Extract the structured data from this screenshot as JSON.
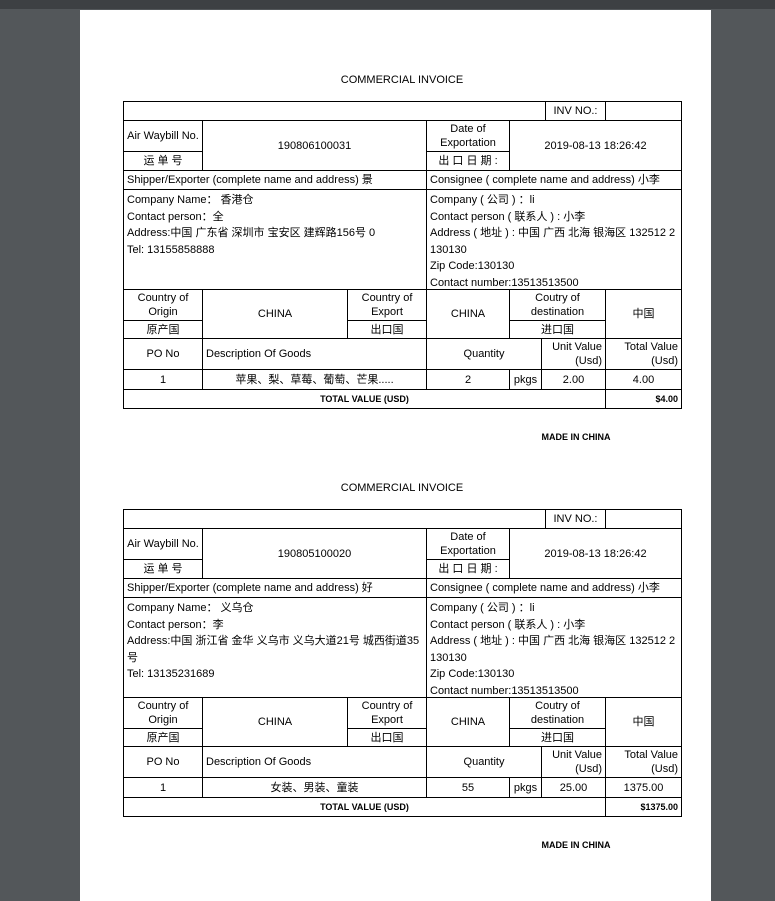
{
  "invoices": [
    {
      "title": "COMMERCIAL INVOICE",
      "inv_no_label": "INV NO.:",
      "inv_no": "",
      "waybill_label": "Air Waybill No.",
      "waybill_label_cn": "运 单 号",
      "waybill_no": "190806100031",
      "date_label": "Date of Exportation",
      "date_label_cn": "出 口 日 期 :",
      "date": "2019-08-13 18:26:42",
      "shipper_header": "Shipper/Exporter (complete name and address) 景",
      "consignee_header": "Consignee ( complete name and address) 小李",
      "shipper_lines": [
        "Company Name： 香港仓",
        "Contact person：全",
        "Address:中国 广东省 深圳市 宝安区 建辉路156号 0",
        "Tel: 13155858888"
      ],
      "consignee_lines": [
        "Company ( 公司 ) ：li",
        "Contact person ( 联系人 ) : 小李",
        "Address ( 地址 ) : 中国 广西 北海 银海区 132512 2",
        "130130",
        "Zip Code:130130",
        "Contact number:13513513500"
      ],
      "origin_label": "Country of Origin",
      "origin_label_cn": "原产国",
      "origin": "CHINA",
      "export_label": "Country of Export",
      "export_label_cn": "出口国",
      "export": "CHINA",
      "dest_label": "Coutry of destination",
      "dest_label_cn": "进口国",
      "dest": "中国",
      "col_po": "PO No",
      "col_desc": "Description Of Goods",
      "col_qty": "Quantity",
      "col_unit": "Unit Value (Usd)",
      "col_total": "Total Value (Usd)",
      "item": {
        "po": "1",
        "desc": "苹果、梨、草莓、葡萄、芒果.....",
        "qty": "2",
        "unit": "pkgs",
        "unit_value": "2.00",
        "total_value": "4.00"
      },
      "total_label": "TOTAL VALUE (USD)",
      "total": "$4.00",
      "made_in": "MADE IN CHINA"
    },
    {
      "title": "COMMERCIAL INVOICE",
      "inv_no_label": "INV NO.:",
      "inv_no": "",
      "waybill_label": "Air Waybill No.",
      "waybill_label_cn": "运 单 号",
      "waybill_no": "190805100020",
      "date_label": "Date of Exportation",
      "date_label_cn": "出 口 日 期 :",
      "date": "2019-08-13 18:26:42",
      "shipper_header": "Shipper/Exporter (complete name and address) 好",
      "consignee_header": "Consignee ( complete name and address) 小李",
      "shipper_lines": [
        "Company Name： 义乌仓",
        "Contact person：李",
        "Address:中国 浙江省 金华 义乌市 义乌大道21号 城西街道35",
        "号",
        "Tel: 13135231689"
      ],
      "consignee_lines": [
        "Company ( 公司 ) ：li",
        "Contact person ( 联系人 ) : 小李",
        "Address ( 地址 ) : 中国 广西 北海 银海区 132512 2",
        "130130",
        "Zip Code:130130",
        "Contact number:13513513500"
      ],
      "origin_label": "Country of Origin",
      "origin_label_cn": "原产国",
      "origin": "CHINA",
      "export_label": "Country of Export",
      "export_label_cn": "出口国",
      "export": "CHINA",
      "dest_label": "Coutry of destination",
      "dest_label_cn": "进口国",
      "dest": "中国",
      "col_po": "PO No",
      "col_desc": "Description Of Goods",
      "col_qty": "Quantity",
      "col_unit": "Unit Value (Usd)",
      "col_total": "Total Value (Usd)",
      "item": {
        "po": "1",
        "desc": "女装、男装、童装",
        "qty": "55",
        "unit": "pkgs",
        "unit_value": "25.00",
        "total_value": "1375.00"
      },
      "total_label": "TOTAL VALUE (USD)",
      "total": "$1375.00",
      "made_in": "MADE IN CHINA"
    }
  ]
}
